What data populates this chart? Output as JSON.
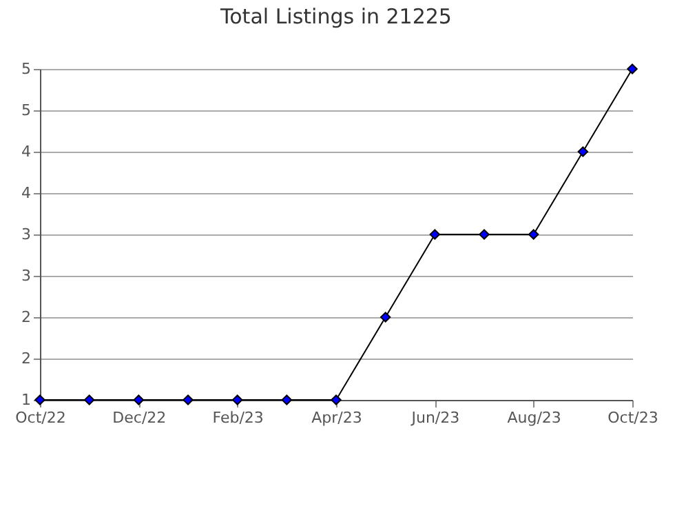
{
  "chart_data": {
    "type": "line",
    "title": "Total Listings in 21225",
    "categories": [
      "Oct/22",
      null,
      "Dec/22",
      null,
      "Feb/23",
      null,
      "Apr/23",
      null,
      "Jun/23",
      null,
      "Aug/23",
      null,
      "Oct/23"
    ],
    "series": [
      {
        "color": "#0000ff",
        "values": [
          1,
          1,
          1,
          1,
          1,
          1,
          1,
          2,
          3,
          3,
          3,
          4,
          5
        ]
      }
    ],
    "ylim": [
      1,
      5
    ],
    "yticks": [
      1,
      {
        "value": 1.5,
        "label": "2"
      },
      2,
      {
        "value": 2.5,
        "label": "3"
      },
      3,
      {
        "value": 3.5,
        "label": "4"
      },
      4,
      {
        "value": 4.5,
        "label": "5"
      },
      5
    ],
    "grid": "y",
    "marker": "diamond",
    "line_style": "solid"
  }
}
